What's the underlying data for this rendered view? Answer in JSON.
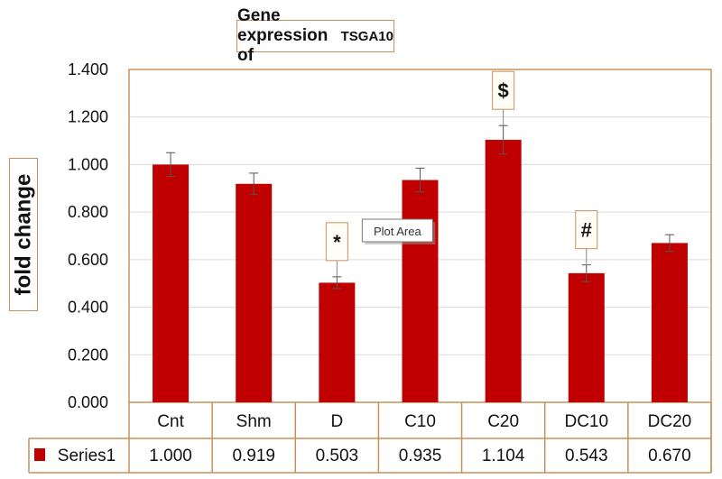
{
  "chart_data": {
    "type": "bar",
    "title": "Gene expression of",
    "title_gene": "TSGA10",
    "ylabel": "fold change",
    "xlabel": "",
    "ylim": [
      0,
      1.4
    ],
    "yticks": [
      "0.000",
      "0.200",
      "0.400",
      "0.600",
      "0.800",
      "1.000",
      "1.200",
      "1.400"
    ],
    "categories": [
      "Cnt",
      "Shm",
      "D",
      "C10",
      "C20",
      "DC10",
      "DC20"
    ],
    "series": [
      {
        "name": "Series1",
        "values": [
          1.0,
          0.919,
          0.503,
          0.935,
          1.104,
          0.543,
          0.67
        ],
        "labels": [
          "1.000",
          "0.919",
          "0.503",
          "0.935",
          "1.104",
          "0.543",
          "0.670"
        ],
        "color": "#c00000"
      }
    ],
    "errors": [
      0.05,
      0.045,
      0.025,
      0.05,
      0.06,
      0.035,
      0.035
    ],
    "annotations": [
      {
        "category": "D",
        "text": "*"
      },
      {
        "category": "C20",
        "text": "$"
      },
      {
        "category": "DC10",
        "text": "#"
      }
    ],
    "tooltip": "Plot Area",
    "grid": true,
    "legend": "data-table"
  }
}
